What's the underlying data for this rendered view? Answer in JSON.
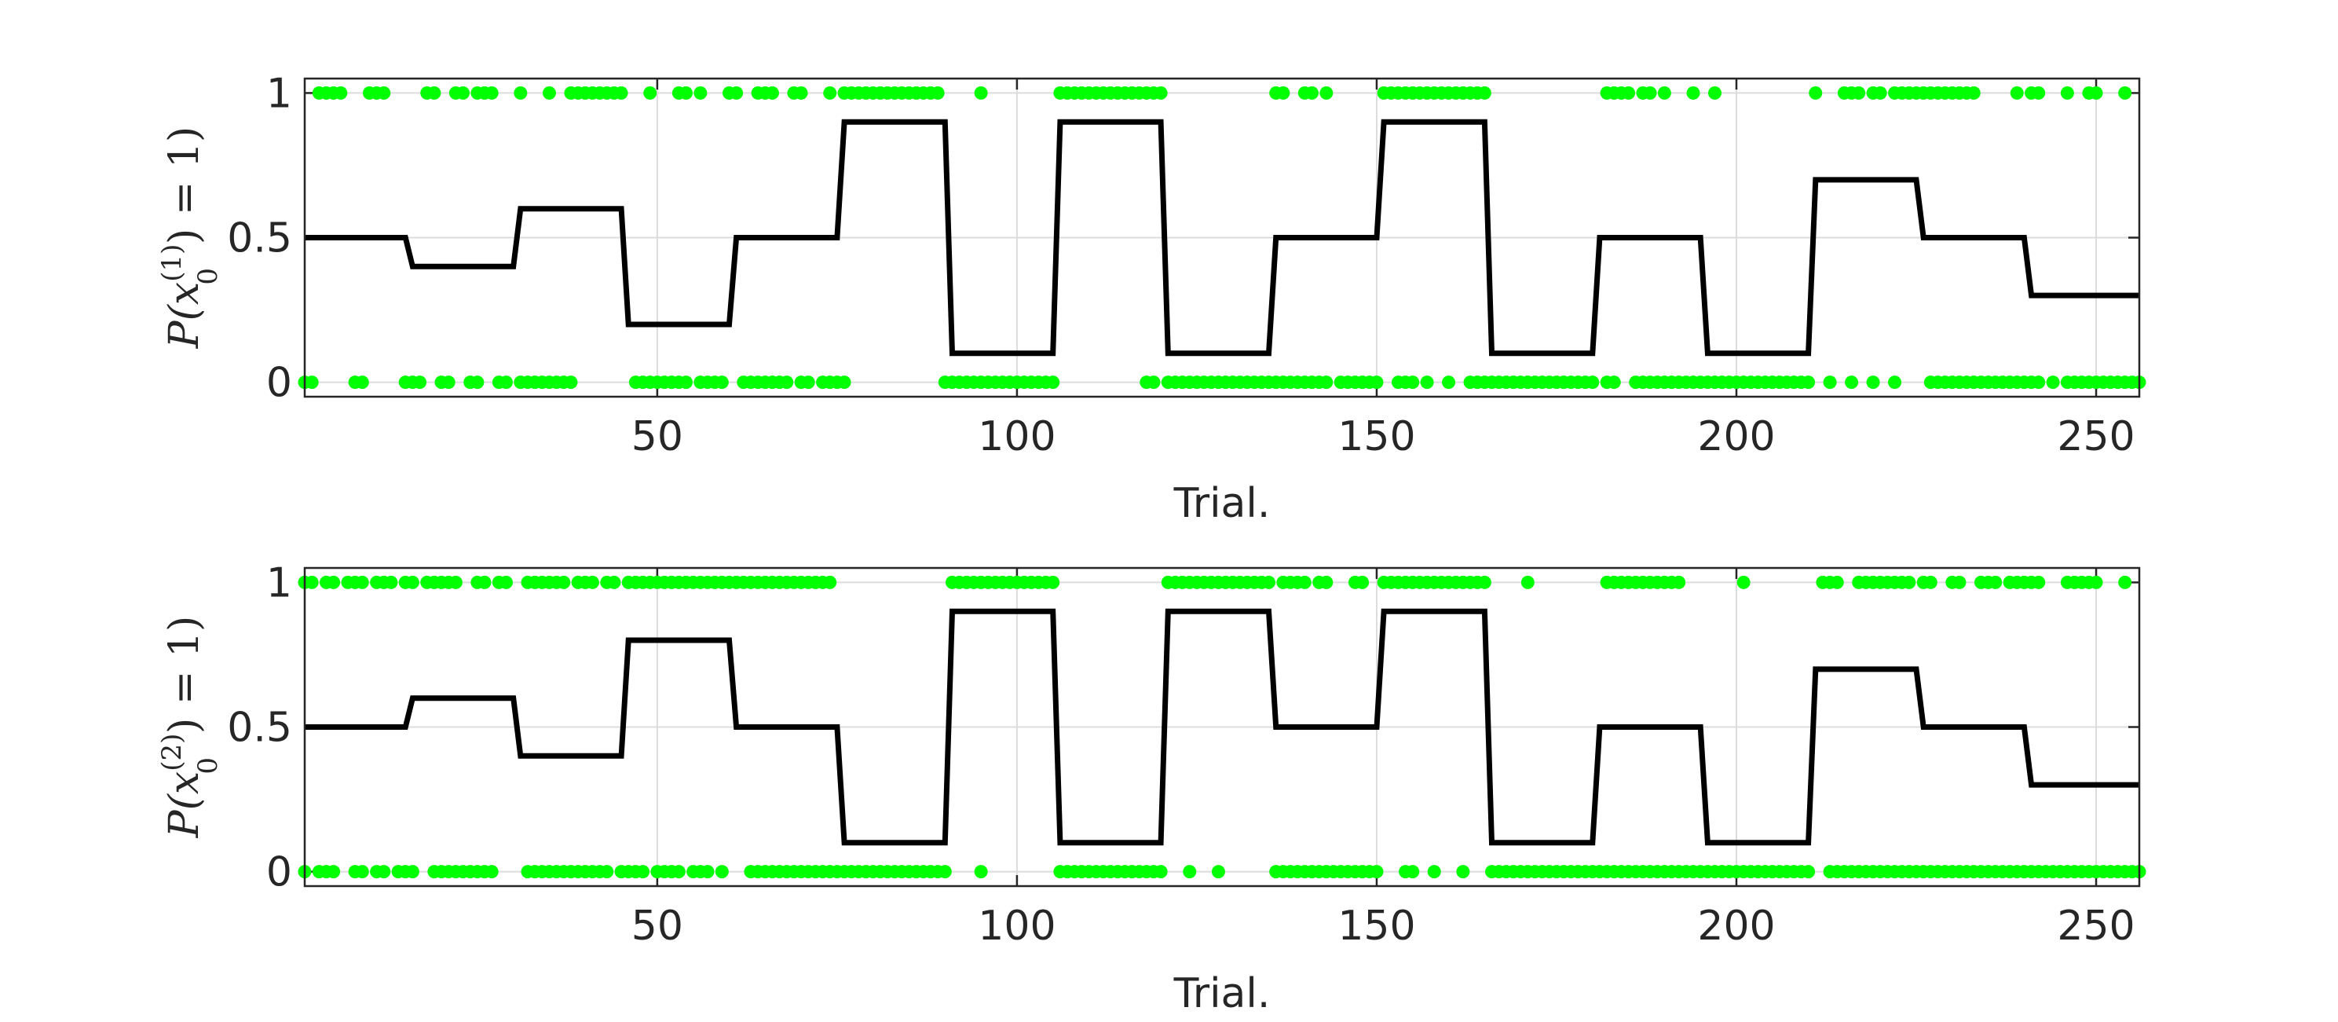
{
  "chart_data": [
    {
      "type": "line",
      "xlabel": "Trial.",
      "ylabel": {
        "main": "P(x",
        "subscript": "0",
        "superscript": "(1)",
        "suffix": ") = 1)"
      },
      "xlim": [
        1,
        256
      ],
      "ylim": [
        -0.05,
        1.05
      ],
      "xticks": [
        50,
        100,
        150,
        200,
        250
      ],
      "yticks": [
        0,
        0.5,
        1
      ],
      "ytick_labels": [
        "0",
        "0.5",
        "1"
      ],
      "grid": true,
      "colors": {
        "line": "#000000",
        "outcomes": "#00ff00"
      },
      "series": [
        {
          "type": "step",
          "segments": [
            [
              1,
              15,
              0.5
            ],
            [
              16,
              30,
              0.4
            ],
            [
              31,
              45,
              0.6
            ],
            [
              46,
              60,
              0.2
            ],
            [
              61,
              75,
              0.5
            ],
            [
              76,
              90,
              0.9
            ],
            [
              91,
              105,
              0.1
            ],
            [
              106,
              120,
              0.9
            ],
            [
              121,
              135,
              0.1
            ],
            [
              136,
              150,
              0.5
            ],
            [
              151,
              165,
              0.9
            ],
            [
              166,
              180,
              0.1
            ],
            [
              181,
              195,
              0.5
            ],
            [
              196,
              210,
              0.1
            ],
            [
              211,
              225,
              0.7
            ],
            [
              226,
              240,
              0.5
            ],
            [
              241,
              256,
              0.3
            ]
          ]
        },
        {
          "type": "scatter",
          "ones": [
            3,
            4,
            5,
            6,
            10,
            11,
            12,
            18,
            19,
            22,
            23,
            25,
            26,
            27,
            31,
            35,
            38,
            39,
            40,
            41,
            42,
            43,
            44,
            45,
            49,
            53,
            54,
            56,
            60,
            61,
            64,
            65,
            66,
            69,
            70,
            74,
            76,
            77,
            78,
            79,
            80,
            81,
            82,
            83,
            84,
            85,
            86,
            87,
            88,
            89,
            95,
            106,
            107,
            108,
            109,
            110,
            111,
            112,
            113,
            114,
            115,
            116,
            117,
            118,
            119,
            120,
            136,
            137,
            140,
            141,
            143,
            151,
            152,
            153,
            154,
            155,
            156,
            157,
            158,
            159,
            160,
            161,
            162,
            163,
            164,
            165,
            182,
            183,
            184,
            185,
            187,
            188,
            190,
            194,
            197,
            211,
            215,
            216,
            217,
            219,
            220,
            222,
            223,
            224,
            225,
            226,
            227,
            228,
            229,
            230,
            231,
            232,
            233,
            239,
            241,
            242,
            246,
            249,
            250,
            254
          ],
          "zeros": [
            1,
            2,
            8,
            9,
            15,
            16,
            17,
            20,
            21,
            24,
            25,
            28,
            29,
            31,
            32,
            33,
            34,
            35,
            36,
            37,
            38,
            47,
            48,
            49,
            50,
            51,
            52,
            53,
            54,
            56,
            57,
            58,
            59,
            62,
            63,
            64,
            65,
            66,
            67,
            68,
            70,
            71,
            73,
            74,
            75,
            76,
            90,
            91,
            92,
            93,
            94,
            95,
            96,
            97,
            98,
            99,
            100,
            101,
            102,
            103,
            104,
            105,
            118,
            119,
            121,
            122,
            123,
            124,
            125,
            126,
            127,
            128,
            129,
            130,
            131,
            132,
            133,
            134,
            135,
            136,
            137,
            138,
            139,
            140,
            141,
            142,
            143,
            145,
            146,
            147,
            148,
            149,
            150,
            153,
            154,
            155,
            157,
            160,
            163,
            164,
            165,
            166,
            167,
            168,
            169,
            170,
            171,
            172,
            173,
            174,
            175,
            176,
            177,
            178,
            179,
            180,
            182,
            183,
            186,
            187,
            188,
            189,
            190,
            191,
            192,
            193,
            194,
            195,
            196,
            197,
            198,
            199,
            200,
            201,
            202,
            203,
            204,
            205,
            206,
            207,
            208,
            209,
            210,
            213,
            216,
            219,
            222,
            227,
            228,
            229,
            230,
            231,
            232,
            233,
            234,
            235,
            236,
            237,
            238,
            239,
            240,
            241,
            242,
            244,
            246,
            247,
            248,
            249,
            250,
            251,
            252,
            253,
            254,
            255,
            256
          ]
        }
      ]
    },
    {
      "type": "line",
      "xlabel": "Trial.",
      "ylabel": {
        "main": "P(x",
        "subscript": "0",
        "superscript": "(2)",
        "suffix": ") = 1)"
      },
      "xlim": [
        1,
        256
      ],
      "ylim": [
        -0.05,
        1.05
      ],
      "xticks": [
        50,
        100,
        150,
        200,
        250
      ],
      "yticks": [
        0,
        0.5,
        1
      ],
      "ytick_labels": [
        "0",
        "0.5",
        "1"
      ],
      "grid": true,
      "colors": {
        "line": "#000000",
        "outcomes": "#00ff00"
      },
      "series": [
        {
          "type": "step",
          "segments": [
            [
              1,
              15,
              0.5
            ],
            [
              16,
              30,
              0.6
            ],
            [
              31,
              45,
              0.4
            ],
            [
              46,
              60,
              0.8
            ],
            [
              61,
              75,
              0.5
            ],
            [
              76,
              90,
              0.1
            ],
            [
              91,
              105,
              0.9
            ],
            [
              106,
              120,
              0.1
            ],
            [
              121,
              135,
              0.9
            ],
            [
              136,
              150,
              0.5
            ],
            [
              151,
              165,
              0.9
            ],
            [
              166,
              180,
              0.1
            ],
            [
              181,
              195,
              0.5
            ],
            [
              196,
              210,
              0.1
            ],
            [
              211,
              225,
              0.7
            ],
            [
              226,
              240,
              0.5
            ],
            [
              241,
              256,
              0.3
            ]
          ]
        },
        {
          "type": "scatter",
          "ones": [
            1,
            2,
            4,
            5,
            7,
            8,
            9,
            11,
            12,
            13,
            15,
            16,
            18,
            19,
            20,
            21,
            22,
            25,
            26,
            28,
            29,
            32,
            33,
            34,
            35,
            36,
            37,
            39,
            40,
            41,
            43,
            44,
            46,
            47,
            48,
            49,
            50,
            51,
            52,
            53,
            54,
            55,
            56,
            57,
            58,
            59,
            60,
            61,
            62,
            63,
            64,
            65,
            66,
            67,
            68,
            69,
            70,
            71,
            72,
            73,
            74,
            91,
            92,
            93,
            94,
            95,
            96,
            97,
            98,
            99,
            100,
            101,
            102,
            103,
            104,
            105,
            121,
            122,
            123,
            124,
            125,
            126,
            127,
            128,
            129,
            130,
            131,
            132,
            133,
            134,
            135,
            137,
            138,
            139,
            140,
            142,
            143,
            147,
            148,
            151,
            152,
            153,
            154,
            155,
            156,
            157,
            158,
            159,
            160,
            161,
            162,
            163,
            164,
            165,
            171,
            182,
            183,
            184,
            185,
            186,
            187,
            188,
            189,
            190,
            191,
            192,
            201,
            212,
            213,
            214,
            217,
            218,
            219,
            220,
            221,
            222,
            223,
            224,
            226,
            227,
            230,
            231,
            234,
            235,
            236,
            238,
            239,
            240,
            241,
            242,
            246,
            247,
            248,
            249,
            250,
            254
          ],
          "zeros": [
            1,
            3,
            4,
            5,
            8,
            9,
            11,
            12,
            14,
            15,
            16,
            19,
            20,
            21,
            22,
            23,
            24,
            25,
            26,
            27,
            32,
            33,
            34,
            35,
            36,
            37,
            38,
            39,
            40,
            41,
            42,
            43,
            45,
            46,
            47,
            48,
            50,
            51,
            52,
            53,
            55,
            56,
            57,
            59,
            63,
            64,
            65,
            66,
            67,
            68,
            69,
            70,
            71,
            72,
            73,
            74,
            75,
            76,
            77,
            78,
            79,
            80,
            81,
            82,
            83,
            84,
            85,
            86,
            87,
            88,
            89,
            90,
            95,
            106,
            107,
            108,
            109,
            110,
            111,
            112,
            113,
            114,
            115,
            116,
            117,
            118,
            119,
            120,
            124,
            128,
            136,
            137,
            138,
            139,
            140,
            141,
            142,
            143,
            144,
            145,
            146,
            147,
            148,
            149,
            150,
            154,
            155,
            158,
            162,
            166,
            167,
            168,
            169,
            170,
            171,
            172,
            173,
            174,
            175,
            176,
            177,
            178,
            179,
            180,
            181,
            182,
            183,
            184,
            185,
            186,
            187,
            188,
            189,
            190,
            191,
            192,
            193,
            194,
            195,
            196,
            197,
            198,
            199,
            200,
            201,
            202,
            203,
            204,
            205,
            206,
            207,
            208,
            209,
            210,
            213,
            214,
            215,
            216,
            217,
            218,
            219,
            220,
            221,
            222,
            223,
            224,
            225,
            226,
            227,
            228,
            229,
            230,
            231,
            232,
            233,
            234,
            235,
            236,
            237,
            238,
            239,
            240,
            241,
            242,
            243,
            244,
            245,
            246,
            247,
            248,
            249,
            250,
            251,
            252,
            253,
            254,
            255,
            256
          ]
        }
      ]
    }
  ]
}
